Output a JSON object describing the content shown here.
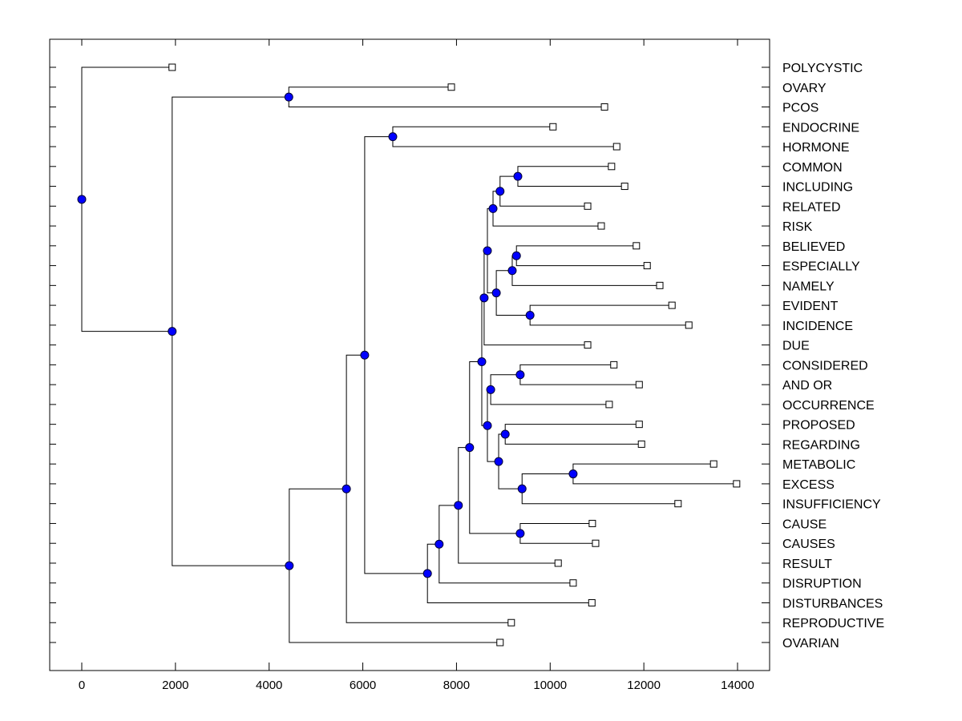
{
  "chart_data": {
    "type": "dendrogram",
    "title": "",
    "xlabel": "",
    "ylabel": "",
    "xlim": [
      -700,
      14700
    ],
    "xticks": [
      0,
      2000,
      4000,
      6000,
      8000,
      10000,
      12000,
      14000
    ],
    "xtick_labels": [
      "0",
      "2000",
      "4000",
      "6000",
      "8000",
      "10000",
      "12000",
      "14000"
    ],
    "grid": false,
    "legend": "none",
    "colors": {
      "node_fill": "#0000ff",
      "line": "#000000",
      "leaf_fill": "#ffffff"
    },
    "leaves": [
      {
        "id": "L0",
        "label": "POLYCYSTIC",
        "value": 1930
      },
      {
        "id": "L1",
        "label": "OVARY",
        "value": 7890
      },
      {
        "id": "L2",
        "label": "PCOS",
        "value": 11160
      },
      {
        "id": "L3",
        "label": "ENDOCRINE",
        "value": 10060
      },
      {
        "id": "L4",
        "label": "HORMONE",
        "value": 11420
      },
      {
        "id": "L5",
        "label": "COMMON",
        "value": 11310
      },
      {
        "id": "L6",
        "label": "INCLUDING",
        "value": 11590
      },
      {
        "id": "L7",
        "label": "RELATED",
        "value": 10800
      },
      {
        "id": "L8",
        "label": "RISK",
        "value": 11090
      },
      {
        "id": "L9",
        "label": "BELIEVED",
        "value": 11840
      },
      {
        "id": "L10",
        "label": "ESPECIALLY",
        "value": 12070
      },
      {
        "id": "L11",
        "label": "NAMELY",
        "value": 12340
      },
      {
        "id": "L12",
        "label": "EVIDENT",
        "value": 12600
      },
      {
        "id": "L13",
        "label": "INCIDENCE",
        "value": 12960
      },
      {
        "id": "L14",
        "label": "DUE",
        "value": 10800
      },
      {
        "id": "L15",
        "label": "CONSIDERED",
        "value": 11360
      },
      {
        "id": "L16",
        "label": "AND OR",
        "value": 11900
      },
      {
        "id": "L17",
        "label": "OCCURRENCE",
        "value": 11260
      },
      {
        "id": "L18",
        "label": "PROPOSED",
        "value": 11900
      },
      {
        "id": "L19",
        "label": "REGARDING",
        "value": 11950
      },
      {
        "id": "L20",
        "label": "METABOLIC",
        "value": 13490
      },
      {
        "id": "L21",
        "label": "EXCESS",
        "value": 13980
      },
      {
        "id": "L22",
        "label": "INSUFFICIENCY",
        "value": 12730
      },
      {
        "id": "L23",
        "label": "CAUSE",
        "value": 10900
      },
      {
        "id": "L24",
        "label": "CAUSES",
        "value": 10970
      },
      {
        "id": "L25",
        "label": "RESULT",
        "value": 10170
      },
      {
        "id": "L26",
        "label": "DISRUPTION",
        "value": 10490
      },
      {
        "id": "L27",
        "label": "DISTURBANCES",
        "value": 10890
      },
      {
        "id": "L28",
        "label": "REPRODUCTIVE",
        "value": 9170
      },
      {
        "id": "L29",
        "label": "OVARIAN",
        "value": 8930
      }
    ],
    "nodes": [
      {
        "id": "N_ovary_pcos",
        "value": 4420,
        "children": [
          "L1",
          "L2"
        ]
      },
      {
        "id": "N_endo_horm",
        "value": 6640,
        "children": [
          "L3",
          "L4"
        ]
      },
      {
        "id": "N_comm_incl",
        "value": 9310,
        "children": [
          "L5",
          "L6"
        ]
      },
      {
        "id": "N_ci_rel",
        "value": 8930,
        "children": [
          "N_comm_incl",
          "L7"
        ]
      },
      {
        "id": "N_cir_risk",
        "value": 8780,
        "children": [
          "N_ci_rel",
          "L8"
        ]
      },
      {
        "id": "N_bel_esp",
        "value": 9280,
        "children": [
          "L9",
          "L10"
        ]
      },
      {
        "id": "N_be_nam",
        "value": 9190,
        "children": [
          "N_bel_esp",
          "L11"
        ]
      },
      {
        "id": "N_evi_inc",
        "value": 9570,
        "children": [
          "L12",
          "L13"
        ]
      },
      {
        "id": "N_ben_ei",
        "value": 8850,
        "children": [
          "N_be_nam",
          "N_evi_inc"
        ]
      },
      {
        "id": "N_grpA",
        "value": 8660,
        "children": [
          "N_cir_risk",
          "N_ben_ei"
        ]
      },
      {
        "id": "N_grpA_due",
        "value": 8590,
        "children": [
          "N_grpA",
          "L14"
        ]
      },
      {
        "id": "N_cons_andor",
        "value": 9360,
        "children": [
          "L15",
          "L16"
        ]
      },
      {
        "id": "N_ca_occ",
        "value": 8730,
        "children": [
          "N_cons_andor",
          "L17"
        ]
      },
      {
        "id": "N_prop_reg",
        "value": 9040,
        "children": [
          "L18",
          "L19"
        ]
      },
      {
        "id": "N_met_exc",
        "value": 10490,
        "children": [
          "L20",
          "L21"
        ]
      },
      {
        "id": "N_me_ins",
        "value": 9400,
        "children": [
          "N_met_exc",
          "L22"
        ]
      },
      {
        "id": "N_pr_mei",
        "value": 8900,
        "children": [
          "N_prop_reg",
          "N_me_ins"
        ]
      },
      {
        "id": "N_grpB",
        "value": 8660,
        "children": [
          "N_ca_occ",
          "N_pr_mei"
        ]
      },
      {
        "id": "N_AB",
        "value": 8540,
        "children": [
          "N_grpA_due",
          "N_grpB"
        ]
      },
      {
        "id": "N_cause_causes",
        "value": 9360,
        "children": [
          "L23",
          "L24"
        ]
      },
      {
        "id": "N_AB_cc",
        "value": 8280,
        "children": [
          "N_AB",
          "N_cause_causes"
        ]
      },
      {
        "id": "N_res",
        "value": 8040,
        "children": [
          "N_AB_cc",
          "L25"
        ]
      },
      {
        "id": "N_dis",
        "value": 7630,
        "children": [
          "N_res",
          "L26"
        ]
      },
      {
        "id": "N_dist",
        "value": 7380,
        "children": [
          "N_dis",
          "L27"
        ]
      },
      {
        "id": "N_eh_big",
        "value": 6040,
        "children": [
          "N_endo_horm",
          "N_dist"
        ]
      },
      {
        "id": "N_repro",
        "value": 5650,
        "children": [
          "N_eh_big",
          "L28"
        ]
      },
      {
        "id": "N_ovarian",
        "value": 4430,
        "children": [
          "N_repro",
          "L29"
        ]
      },
      {
        "id": "N_mid",
        "value": 1930,
        "children": [
          "N_ovary_pcos",
          "N_ovarian"
        ]
      },
      {
        "id": "N_root",
        "value": 0,
        "children": [
          "L0",
          "N_mid"
        ]
      }
    ]
  }
}
